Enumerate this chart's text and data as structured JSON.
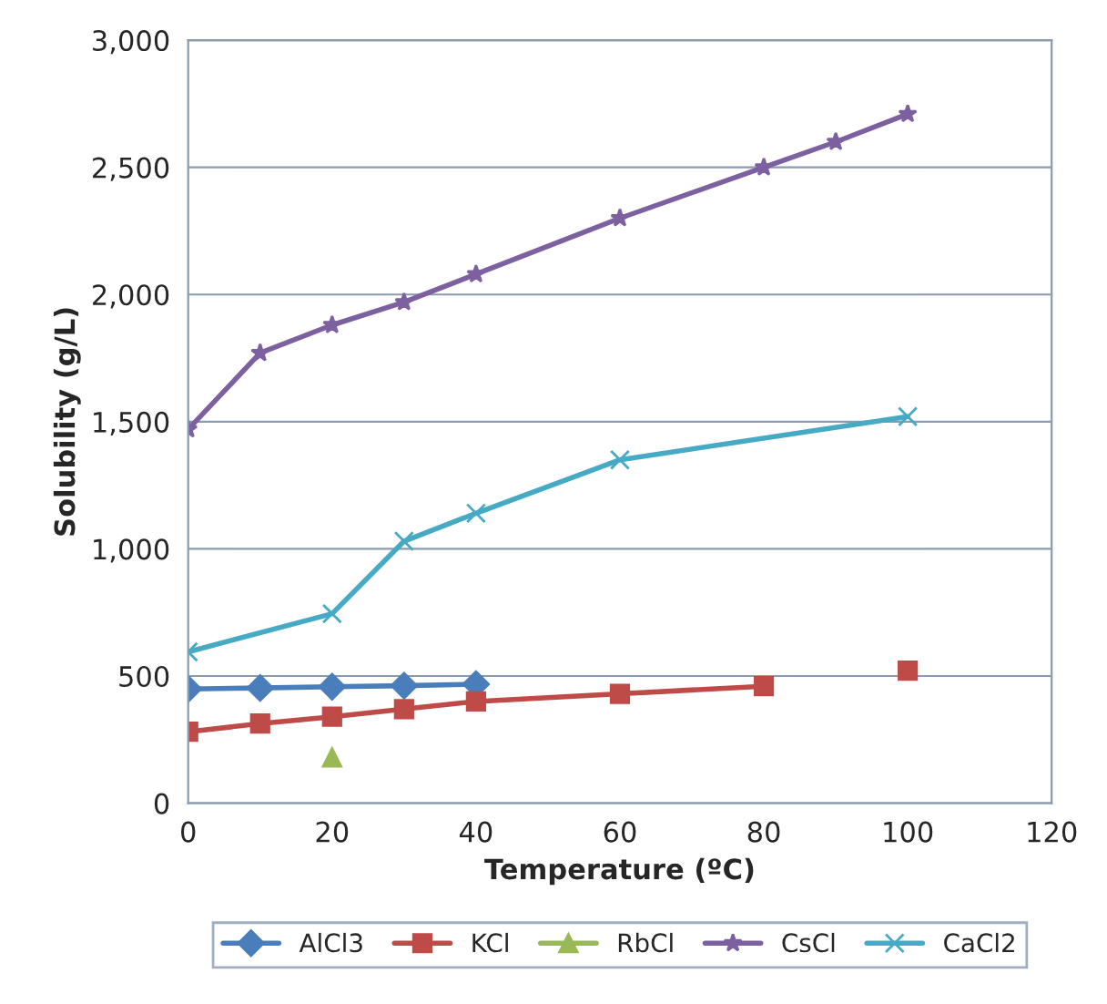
{
  "chart_data": {
    "type": "line",
    "xlabel": "Temperature (ºC)",
    "ylabel": "Solubility (g/L)",
    "xlim": [
      0,
      120
    ],
    "xticks": [
      0,
      20,
      40,
      60,
      80,
      100,
      120
    ],
    "ylim": [
      0,
      3000
    ],
    "yticks": [
      0,
      500,
      {
        "value": 1000,
        "label": "1,000"
      },
      {
        "value": 1500,
        "label": "1,500"
      },
      {
        "value": 2000,
        "label": "2,000"
      },
      {
        "value": 2500,
        "label": "2,500"
      },
      {
        "value": 3000,
        "label": "3,000"
      }
    ],
    "grid": "y",
    "legend": "bottom",
    "series": [
      {
        "name": "AlCl3",
        "color": "#4a7ebb",
        "marker": "diamond",
        "x": [
          0,
          10,
          20,
          30,
          40
        ],
        "values": [
          449,
          453,
          458,
          462,
          468
        ]
      },
      {
        "name": "KCl",
        "color": "#be4b48",
        "marker": "square",
        "x": [
          0,
          10,
          20,
          30,
          40,
          60,
          80,
          90,
          100
        ],
        "values": [
          281,
          313,
          340,
          370,
          400,
          430,
          460,
          null,
          521
        ]
      },
      {
        "name": "RbCl",
        "color": "#98b954",
        "marker": "triangle",
        "x": [
          20
        ],
        "values": [
          180
        ]
      },
      {
        "name": "CsCl",
        "color": "#7d60a0",
        "marker": "star",
        "x": [
          0,
          10,
          20,
          30,
          40,
          60,
          80,
          90,
          100
        ],
        "values": [
          1470,
          1770,
          1880,
          1970,
          2080,
          2300,
          2500,
          2600,
          2710
        ]
      },
      {
        "name": "CaCl2",
        "color": "#46aac5",
        "marker": "cross",
        "x": [
          0,
          20,
          30,
          40,
          60,
          100
        ],
        "values": [
          595,
          745,
          1030,
          1140,
          1350,
          1520
        ]
      }
    ]
  }
}
